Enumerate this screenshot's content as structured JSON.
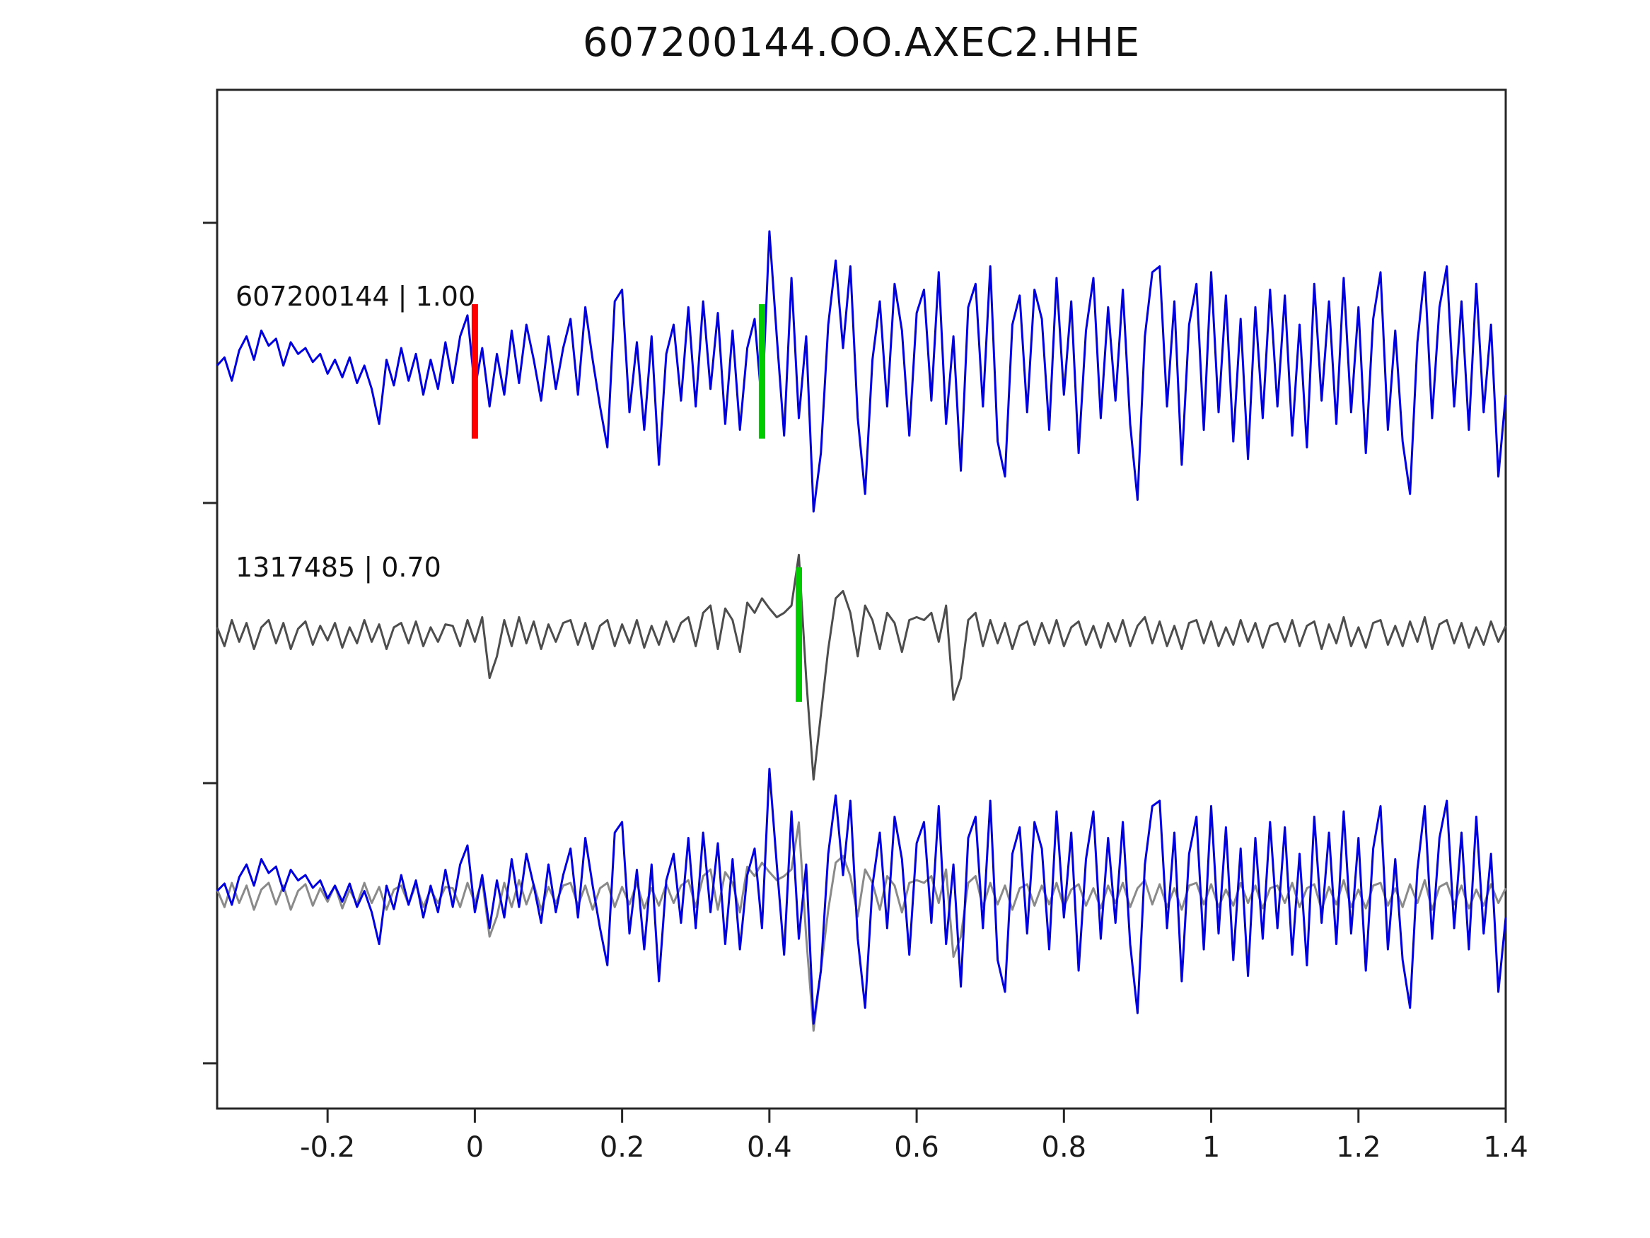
{
  "title": "607200144.OO.AXEC2.HHE",
  "colors": {
    "template_trace": "#0000dd",
    "detection_trace": "#4d4d4d",
    "overlay_detection_trace": "#8a8a8a",
    "pick_green": "#00cc00",
    "pick_red": "#ff0000",
    "axis": "#262626"
  },
  "chart_data": {
    "type": "line",
    "title": "607200144.OO.AXEC2.HHE",
    "xlabel": "",
    "ylabel": "",
    "xlim": [
      -0.35,
      1.4
    ],
    "grid": false,
    "legend_position": "none",
    "x_ticks": [
      -0.2,
      0,
      0.2,
      0.4,
      0.6,
      0.8,
      1,
      1.2,
      1.4
    ],
    "x_tick_labels": [
      "-0.2",
      "0",
      "0.2",
      "0.4",
      "0.6",
      "0.8",
      "1",
      "1.2",
      "1.4"
    ],
    "x_start": -0.35,
    "x_step": 0.01,
    "series": [
      {
        "name": "607200144",
        "label": "607200144 | 1.00",
        "color": "#0000dd",
        "row": 0,
        "values": [
          0.05,
          0.12,
          -0.08,
          0.18,
          0.3,
          0.1,
          0.35,
          0.22,
          0.28,
          0.05,
          0.25,
          0.15,
          0.2,
          0.08,
          0.15,
          -0.02,
          0.1,
          -0.05,
          0.12,
          -0.1,
          0.05,
          -0.15,
          -0.45,
          0.1,
          -0.12,
          0.2,
          -0.08,
          0.15,
          -0.2,
          0.1,
          -0.15,
          0.25,
          -0.1,
          0.3,
          0.48,
          -0.15,
          0.2,
          -0.3,
          0.15,
          -0.2,
          0.35,
          -0.1,
          0.4,
          0.1,
          -0.25,
          0.3,
          -0.15,
          0.2,
          0.45,
          -0.2,
          0.55,
          0.1,
          -0.3,
          -0.65,
          0.6,
          0.7,
          -0.35,
          0.25,
          -0.5,
          0.3,
          -0.8,
          0.15,
          0.4,
          -0.25,
          0.55,
          -0.3,
          0.6,
          -0.15,
          0.5,
          -0.45,
          0.35,
          -0.5,
          0.2,
          0.45,
          -0.3,
          1.2,
          0.3,
          -0.55,
          0.8,
          -0.4,
          0.3,
          -1.2,
          -0.7,
          0.4,
          0.95,
          0.2,
          0.9,
          -0.4,
          -1.05,
          0.1,
          0.6,
          -0.3,
          0.75,
          0.35,
          -0.55,
          0.5,
          0.7,
          -0.25,
          0.85,
          -0.45,
          0.3,
          -0.85,
          0.55,
          0.75,
          -0.3,
          0.9,
          -0.6,
          -0.9,
          0.4,
          0.65,
          -0.35,
          0.7,
          0.45,
          -0.5,
          0.8,
          -0.2,
          0.6,
          -0.7,
          0.35,
          0.8,
          -0.4,
          0.55,
          -0.25,
          0.7,
          -0.45,
          -1.1,
          0.3,
          0.85,
          0.9,
          -0.3,
          0.6,
          -0.8,
          0.4,
          0.75,
          -0.5,
          0.85,
          -0.35,
          0.65,
          -0.6,
          0.45,
          -0.75,
          0.55,
          -0.4,
          0.7,
          -0.3,
          0.65,
          -0.55,
          0.4,
          -0.65,
          0.75,
          -0.25,
          0.6,
          -0.45,
          0.8,
          -0.35,
          0.55,
          -0.7,
          0.45,
          0.85,
          -0.5,
          0.35,
          -0.6,
          -1.05,
          0.25,
          0.85,
          -0.4,
          0.55,
          0.9,
          -0.3,
          0.6,
          -0.5,
          0.75,
          -0.35,
          0.4,
          -0.9,
          -0.2
        ]
      },
      {
        "name": "1317485",
        "label": "1317485 | 0.70",
        "color": "#4d4d4d",
        "row": 1,
        "values": [
          0.05,
          -0.08,
          0.1,
          -0.05,
          0.08,
          -0.1,
          0.05,
          0.1,
          -0.06,
          0.08,
          -0.1,
          0.04,
          0.09,
          -0.07,
          0.06,
          -0.04,
          0.08,
          -0.09,
          0.05,
          -0.06,
          0.1,
          -0.05,
          0.07,
          -0.1,
          0.05,
          0.08,
          -0.06,
          0.09,
          -0.08,
          0.05,
          -0.05,
          0.07,
          0.06,
          -0.08,
          0.1,
          -0.05,
          0.12,
          -0.3,
          -0.15,
          0.1,
          -0.08,
          0.12,
          -0.06,
          0.09,
          -0.1,
          0.07,
          -0.05,
          0.08,
          0.1,
          -0.07,
          0.08,
          -0.1,
          0.06,
          0.1,
          -0.08,
          0.07,
          -0.06,
          0.1,
          -0.09,
          0.06,
          -0.07,
          0.09,
          -0.05,
          0.08,
          0.12,
          -0.08,
          0.15,
          0.2,
          -0.1,
          0.18,
          0.1,
          -0.12,
          0.22,
          0.15,
          0.25,
          0.18,
          0.12,
          0.15,
          0.2,
          0.55,
          -0.3,
          -1.0,
          -0.55,
          -0.1,
          0.25,
          0.3,
          0.15,
          -0.15,
          0.2,
          0.1,
          -0.1,
          0.15,
          0.08,
          -0.12,
          0.1,
          0.12,
          0.1,
          0.15,
          -0.05,
          0.2,
          -0.45,
          -0.3,
          0.1,
          0.15,
          -0.08,
          0.1,
          -0.06,
          0.08,
          -0.1,
          0.06,
          0.09,
          -0.07,
          0.08,
          -0.06,
          0.1,
          -0.08,
          0.05,
          0.09,
          -0.07,
          0.06,
          -0.09,
          0.08,
          -0.05,
          0.1,
          -0.08,
          0.06,
          0.12,
          -0.06,
          0.09,
          -0.08,
          0.06,
          -0.1,
          0.08,
          0.1,
          -0.06,
          0.09,
          -0.08,
          0.05,
          -0.07,
          0.1,
          -0.05,
          0.08,
          -0.09,
          0.06,
          0.08,
          -0.05,
          0.1,
          -0.08,
          0.06,
          0.09,
          -0.1,
          0.07,
          -0.06,
          0.12,
          -0.08,
          0.05,
          -0.09,
          0.08,
          0.1,
          -0.07,
          0.06,
          -0.08,
          0.09,
          -0.05,
          0.12,
          -0.1,
          0.07,
          0.1,
          -0.06,
          0.08,
          -0.09,
          0.05,
          -0.07,
          0.09,
          -0.05,
          0.06
        ]
      },
      {
        "name": "overlay-1317485",
        "label": "",
        "color": "#8a8a8a",
        "row": 2,
        "ref": "1317485"
      },
      {
        "name": "overlay-607200144",
        "label": "",
        "color": "#0000dd",
        "row": 2,
        "ref": "607200144"
      }
    ],
    "markers": [
      {
        "name": "pick-red-template",
        "color": "#ff0000",
        "x": 0.0,
        "row": 0
      },
      {
        "name": "pick-green-template",
        "color": "#00cc00",
        "x": 0.39,
        "row": 0
      },
      {
        "name": "pick-green-detection",
        "color": "#00cc00",
        "x": 0.44,
        "row": 1
      }
    ],
    "annotations": [
      {
        "name": "trace-label-template",
        "text": "607200144 | 1.00",
        "row": 0
      },
      {
        "name": "trace-label-detection",
        "text": "1317485 | 0.70",
        "row": 1
      }
    ]
  }
}
